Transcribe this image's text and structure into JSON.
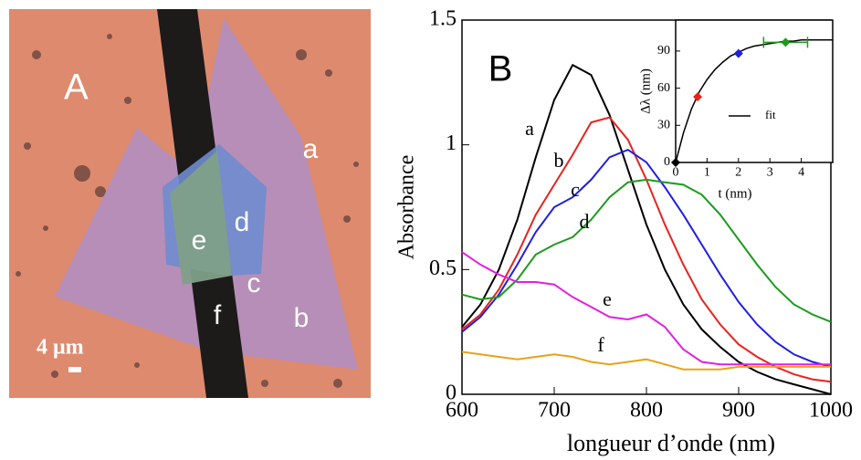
{
  "micrograph": {
    "panel_label": "A",
    "region_labels": [
      "a",
      "b",
      "c",
      "d",
      "e",
      "f"
    ],
    "scale_bar": "4 μm"
  },
  "chart_data": [
    {
      "type": "line",
      "panel_label": "B",
      "xlabel": "longueur d’onde  (nm)",
      "ylabel": "Absorbance",
      "xlim": [
        600,
        1000
      ],
      "ylim": [
        0,
        1.5
      ],
      "xticks": [
        600,
        700,
        800,
        900,
        1000
      ],
      "yticks": [
        0,
        0.5,
        1,
        1.5
      ],
      "x": [
        600,
        620,
        640,
        660,
        680,
        700,
        720,
        740,
        760,
        780,
        800,
        820,
        840,
        860,
        880,
        900,
        920,
        940,
        960,
        980,
        1000
      ],
      "series": [
        {
          "name": "a",
          "color": "#000000",
          "values": [
            0.27,
            0.36,
            0.5,
            0.7,
            0.95,
            1.18,
            1.32,
            1.28,
            1.12,
            0.9,
            0.68,
            0.5,
            0.36,
            0.26,
            0.19,
            0.13,
            0.09,
            0.06,
            0.04,
            0.02,
            0.0
          ]
        },
        {
          "name": "b",
          "color": "#e8231e",
          "values": [
            0.26,
            0.32,
            0.42,
            0.56,
            0.72,
            0.84,
            0.96,
            1.09,
            1.11,
            1.02,
            0.86,
            0.68,
            0.52,
            0.38,
            0.28,
            0.2,
            0.15,
            0.11,
            0.08,
            0.06,
            0.05
          ]
        },
        {
          "name": "c",
          "color": "#1f1fe0",
          "values": [
            0.25,
            0.31,
            0.4,
            0.52,
            0.65,
            0.75,
            0.79,
            0.86,
            0.95,
            0.98,
            0.93,
            0.83,
            0.72,
            0.6,
            0.48,
            0.37,
            0.28,
            0.21,
            0.16,
            0.13,
            0.11
          ]
        },
        {
          "name": "d",
          "color": "#1d9a1d",
          "values": [
            0.4,
            0.38,
            0.39,
            0.46,
            0.56,
            0.6,
            0.63,
            0.7,
            0.79,
            0.85,
            0.86,
            0.85,
            0.84,
            0.8,
            0.72,
            0.62,
            0.52,
            0.43,
            0.36,
            0.32,
            0.29
          ]
        },
        {
          "name": "e",
          "color": "#e020e0",
          "values": [
            0.57,
            0.52,
            0.48,
            0.45,
            0.45,
            0.44,
            0.39,
            0.35,
            0.31,
            0.3,
            0.32,
            0.27,
            0.18,
            0.13,
            0.12,
            0.12,
            0.12,
            0.12,
            0.12,
            0.12,
            0.12
          ]
        },
        {
          "name": "f",
          "color": "#e8a21a",
          "values": [
            0.17,
            0.16,
            0.15,
            0.14,
            0.15,
            0.16,
            0.15,
            0.13,
            0.12,
            0.13,
            0.14,
            0.12,
            0.1,
            0.1,
            0.1,
            0.11,
            0.11,
            0.11,
            0.11,
            0.11,
            0.11
          ]
        }
      ]
    },
    {
      "type": "scatter",
      "xlabel": "t (nm)",
      "ylabel": "Δλ  (nm)",
      "xlim": [
        0,
        5
      ],
      "ylim": [
        0,
        115
      ],
      "xticks": [
        0,
        1,
        2,
        3,
        4
      ],
      "yticks": [
        0,
        30,
        60,
        90
      ],
      "x": [
        0,
        0.7,
        2,
        3.5
      ],
      "values": [
        0,
        53,
        88,
        97
      ],
      "xerr": [
        0,
        0,
        0,
        0.7
      ],
      "colors": [
        "#000000",
        "#e8231e",
        "#1f1fe0",
        "#1d9a1d"
      ],
      "fit": {
        "name": "fit",
        "color": "#000000",
        "x": [
          0,
          0.25,
          0.5,
          0.75,
          1,
          1.25,
          1.5,
          1.75,
          2,
          2.25,
          2.5,
          2.75,
          3,
          3.25,
          3.5,
          3.75,
          4,
          4.25,
          4.5,
          4.75,
          5
        ],
        "values": [
          0,
          24,
          43,
          57,
          67,
          75,
          81,
          86,
          89,
          92,
          94,
          95,
          96,
          97,
          98,
          98,
          99,
          99,
          99,
          99,
          99
        ]
      }
    }
  ]
}
